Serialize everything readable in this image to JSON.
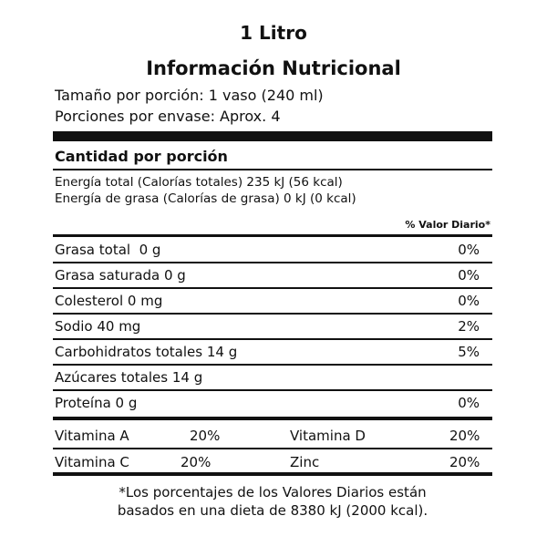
{
  "title": "1 Litro",
  "heading": "Información Nutricional",
  "serving_size": "Tamaño por porción: 1 vaso (240 ml)",
  "servings_per_container": "Porciones por envase: Aprox. 4",
  "amount_per_serving": "Cantidad por porción",
  "energy_total": "Energía total (Calorías totales) 235 kJ (56 kcal)",
  "energy_fat": "Energía de grasa (Calorías de grasa) 0 kJ (0 kcal)",
  "daily_value_header": "% Valor Diario*",
  "nutrients": [
    {
      "name": "Grasa total  0 g",
      "dv": "0%"
    },
    {
      "name": "Grasa saturada 0 g",
      "dv": "0%"
    },
    {
      "name": "Colesterol 0 mg",
      "dv": "0%"
    },
    {
      "name": "Sodio 40 mg",
      "dv": "2%"
    },
    {
      "name": "Carbohidratos totales 14 g",
      "dv": "5%"
    },
    {
      "name": "Azúcares totales 14 g",
      "dv": ""
    },
    {
      "name": "Proteína 0 g",
      "dv": "0%"
    }
  ],
  "vitamins": [
    [
      {
        "name": "Vitamina A",
        "dv": "20%"
      },
      {
        "name": "Vitamina D",
        "dv": "20%"
      }
    ],
    [
      {
        "name": "Vitamina C",
        "dv": "20%"
      },
      {
        "name": "Zinc",
        "dv": "20%"
      }
    ]
  ],
  "footnote_line1": "*Los porcentajes de los Valores Diarios están",
  "footnote_line2": "basados en una dieta de 8380 kJ (2000 kcal)."
}
